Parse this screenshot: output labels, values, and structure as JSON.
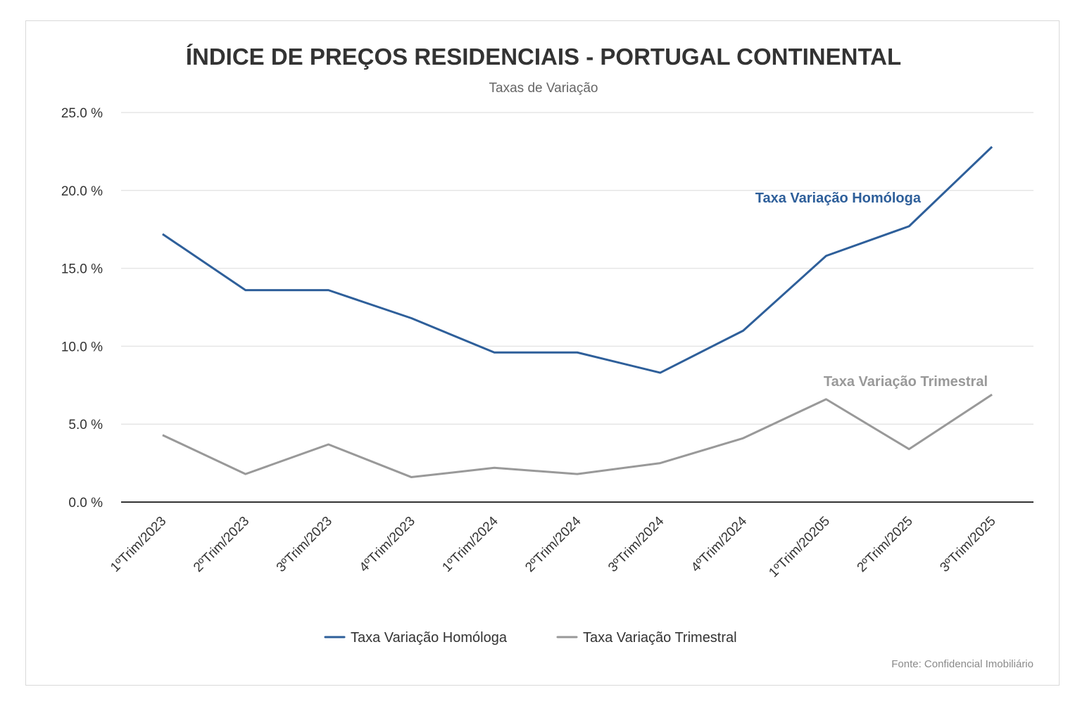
{
  "chart_data": {
    "type": "line",
    "title": "ÍNDICE DE PREÇOS RESIDENCIAIS - PORTUGAL CONTINENTAL",
    "subtitle": "Taxas de Variação",
    "xlabel": "",
    "ylabel": "",
    "ylim": [
      0,
      25
    ],
    "yticks": [
      0,
      5,
      10,
      15,
      20,
      25
    ],
    "ytick_labels": [
      "0.0 %",
      "5.0 %",
      "10.0 %",
      "15.0 %",
      "20.0 %",
      "25.0 %"
    ],
    "grid": true,
    "categories": [
      "1ºTrim/2023",
      "2ºTrim/2023",
      "3ºTrim/2023",
      "4ºTrim/2023",
      "1ºTrim/2024",
      "2ºTrim/2024",
      "3ºTrim/2024",
      "4ºTrim/2024",
      "1ºTrim/20205",
      "2ºTrim/2025",
      "3ºTrim/2025"
    ],
    "series": [
      {
        "name": "Taxa Variação Homóloga",
        "color": "#2e5f9a",
        "values": [
          17.2,
          13.6,
          13.6,
          11.8,
          9.6,
          9.6,
          8.3,
          11.0,
          15.8,
          17.7,
          22.8
        ]
      },
      {
        "name": "Taxa Variação Trimestral",
        "color": "#999999",
        "values": [
          4.3,
          1.8,
          3.7,
          1.6,
          2.2,
          1.8,
          2.5,
          4.1,
          6.6,
          3.4,
          6.9
        ]
      }
    ],
    "annotations": [
      {
        "text": "Taxa Variação Homóloga",
        "series": 0,
        "color": "#2e5f9a"
      },
      {
        "text": "Taxa Variação Trimestral",
        "series": 1,
        "color": "#999999"
      }
    ],
    "legend": {
      "position": "bottom-center"
    },
    "source": "Fonte: Confidencial Imobiliário"
  }
}
